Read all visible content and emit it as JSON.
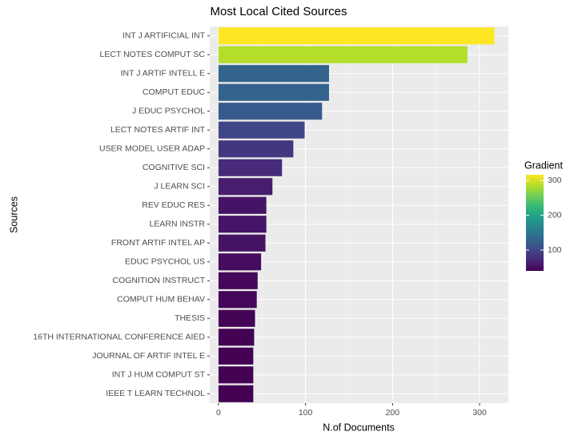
{
  "chart_data": {
    "type": "bar",
    "orientation": "horizontal",
    "title": "Most Local Cited Sources",
    "x_label": "N.of Documents",
    "y_label": "Sources",
    "categories": [
      "INT J ARTIFICIAL INT",
      "LECT NOTES COMPUT SC",
      "INT J ARTIF INTELL E",
      "COMPUT EDUC",
      "J EDUC PSYCHOL",
      "LECT NOTES ARTIF INT",
      "USER MODEL USER ADAP",
      "COGNITIVE SCI",
      "J LEARN SCI",
      "REV EDUC RES",
      "LEARN INSTR",
      "FRONT ARTIF INTEL AP",
      "EDUC PSYCHOL US",
      "COGNITION INSTRUCT",
      "COMPUT HUM BEHAV",
      "THESIS",
      "16TH INTERNATIONAL CONFERENCE AIED",
      "JOURNAL OF ARTIF INTEL E",
      "INT J HUM COMPUT ST",
      "IEEE T LEARN TECHNOL"
    ],
    "values": [
      317,
      286,
      127,
      127,
      119,
      99,
      86,
      73,
      62,
      55,
      55,
      54,
      49,
      45,
      44,
      42,
      41,
      40,
      40,
      40
    ],
    "xlim": [
      -10,
      333
    ],
    "xticks": [
      0,
      100,
      200,
      300
    ],
    "xminor": [
      50,
      150,
      250
    ],
    "grid": true,
    "legend_title": "Gradient",
    "legend_ticks": [
      100,
      200,
      300
    ],
    "color_limits": [
      40,
      317
    ],
    "colorscale": [
      "#440154",
      "#482878",
      "#3e4989",
      "#31688e",
      "#26828e",
      "#1f9e89",
      "#35b779",
      "#6ece58",
      "#b5de2b",
      "#fde725"
    ]
  }
}
